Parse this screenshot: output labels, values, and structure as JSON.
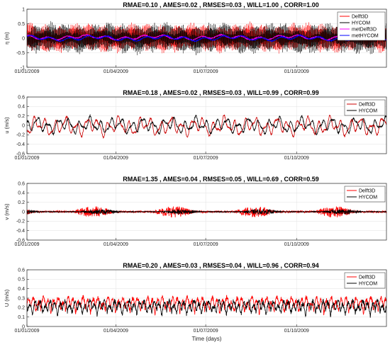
{
  "chart_data": [
    {
      "type": "line",
      "title": "RMAE=0.10  ,  AMES=0.02  ,  RMSES=0.03  ,  WILL=1.00  ,  CORR=1.00",
      "ylabel": "η (m)",
      "xlabel": "",
      "xlim": [
        "2009-01-01",
        "2009-12-31"
      ],
      "ylim": [
        -1,
        1
      ],
      "yticks": [
        "-1",
        "-0.5",
        "0",
        "0.5",
        "1"
      ],
      "xticks": [
        "01/01/2009",
        "01/04/2009",
        "01/07/2009",
        "01/10/2009"
      ],
      "legend": "top-right",
      "series": [
        {
          "name": "Delft3D",
          "color": "#ff0000",
          "style": "tide",
          "amp": 0.52,
          "mean": 0.02
        },
        {
          "name": "HYCOM",
          "color": "#000000",
          "style": "tide",
          "amp": 0.55,
          "mean": 0.0
        },
        {
          "name": "metDelft3D",
          "color": "#ff00ff",
          "style": "smooth",
          "amp": 0.08,
          "mean": 0.03
        },
        {
          "name": "metHYCOM",
          "color": "#0000ff",
          "style": "smooth",
          "amp": 0.09,
          "mean": 0.0
        }
      ]
    },
    {
      "type": "line",
      "title": "RMAE=0.18  ,  AMES=0.02  ,  RMSES=0.03  ,  WILL=0.99  ,  CORR=0.99",
      "ylabel": "u (m/s)",
      "xlabel": "",
      "xlim": [
        "2009-01-01",
        "2009-12-31"
      ],
      "ylim": [
        -0.6,
        0.6
      ],
      "yticks": [
        "-0.6",
        "-0.4",
        "-0.2",
        "0",
        "0.2",
        "0.4",
        "0.6"
      ],
      "xticks": [
        "01/01/2009",
        "01/04/2009",
        "01/07/2009",
        "01/10/2009"
      ],
      "legend": "top-right",
      "series": [
        {
          "name": "Delft3D",
          "color": "#cc0000",
          "style": "wiggle",
          "amp": 0.2,
          "mean": -0.02
        },
        {
          "name": "HYCOM",
          "color": "#000000",
          "style": "wiggle",
          "amp": 0.18,
          "mean": 0.0
        }
      ]
    },
    {
      "type": "line",
      "title": "RMAE=1.35  ,  AMES=0.04  ,  RMSES=0.05  ,  WILL=0.69  ,  CORR=0.59",
      "ylabel": "v (m/s)",
      "xlabel": "",
      "xlim": [
        "2009-01-01",
        "2009-12-31"
      ],
      "ylim": [
        -0.6,
        0.6
      ],
      "yticks": [
        "-0.6",
        "-0.4",
        "-0.2",
        "0",
        "0.2",
        "0.4",
        "0.6"
      ],
      "xticks": [
        "01/01/2009",
        "01/04/2009",
        "01/07/2009",
        "01/10/2009"
      ],
      "legend": "top-right",
      "series": [
        {
          "name": "Delft3D",
          "color": "#ff0000",
          "style": "noise",
          "amp": 0.07,
          "mean": 0.0
        },
        {
          "name": "HYCOM",
          "color": "#000000",
          "style": "noise",
          "amp": 0.03,
          "mean": 0.0
        }
      ]
    },
    {
      "type": "line",
      "title": "RMAE=0.20  ,  AMES=0.03  ,  RMSES=0.04  ,  WILL=0.96  ,  CORR=0.94",
      "ylabel": "U (m/s)",
      "xlabel": "Time (days)",
      "xlim": [
        "2009-01-01",
        "2009-12-31"
      ],
      "ylim": [
        0,
        0.6
      ],
      "yticks": [
        "0",
        "0.1",
        "0.2",
        "0.3",
        "0.4",
        "0.5",
        "0.6"
      ],
      "xticks": [
        "01/01/2009",
        "01/04/2009",
        "01/07/2009",
        "01/10/2009"
      ],
      "legend": "top-right",
      "series": [
        {
          "name": "Delft3D",
          "color": "#ff0000",
          "style": "speed",
          "amp": 0.2,
          "mean": 0.17
        },
        {
          "name": "HYCOM",
          "color": "#000000",
          "style": "speed",
          "amp": 0.18,
          "mean": 0.15
        }
      ]
    }
  ]
}
